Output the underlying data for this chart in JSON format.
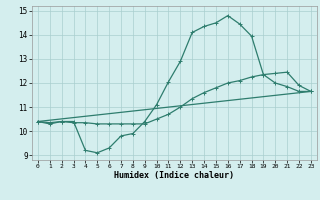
{
  "xlabel": "Humidex (Indice chaleur)",
  "bg_color": "#d4eeee",
  "line_color": "#2e7d6e",
  "grid_color": "#aacfcf",
  "xlim": [
    -0.5,
    23.5
  ],
  "ylim": [
    8.8,
    15.2
  ],
  "xticks": [
    0,
    1,
    2,
    3,
    4,
    5,
    6,
    7,
    8,
    9,
    10,
    11,
    12,
    13,
    14,
    15,
    16,
    17,
    18,
    19,
    20,
    21,
    22,
    23
  ],
  "yticks": [
    9,
    10,
    11,
    12,
    13,
    14,
    15
  ],
  "line1_x": [
    0,
    1,
    2,
    3,
    4,
    5,
    6,
    7,
    8,
    9,
    10,
    11,
    12,
    13,
    14,
    15,
    16,
    17,
    18,
    19,
    20,
    21,
    22,
    23
  ],
  "line1_y": [
    10.4,
    10.3,
    10.4,
    10.4,
    9.2,
    9.1,
    9.3,
    9.8,
    9.9,
    10.4,
    11.1,
    12.05,
    12.9,
    14.1,
    14.35,
    14.5,
    14.8,
    14.45,
    13.95,
    12.35,
    12.0,
    11.85,
    11.65,
    11.65
  ],
  "line2_x": [
    0,
    1,
    2,
    3,
    4,
    5,
    6,
    7,
    8,
    9,
    10,
    11,
    12,
    13,
    14,
    15,
    16,
    17,
    18,
    19,
    20,
    21,
    22,
    23
  ],
  "line2_y": [
    10.4,
    10.35,
    10.4,
    10.35,
    10.35,
    10.3,
    10.3,
    10.3,
    10.3,
    10.3,
    10.5,
    10.7,
    11.0,
    11.35,
    11.6,
    11.8,
    12.0,
    12.1,
    12.25,
    12.35,
    12.4,
    12.45,
    11.9,
    11.65
  ],
  "line3_x": [
    0,
    23
  ],
  "line3_y": [
    10.4,
    11.65
  ],
  "marker_size": 3.5,
  "linewidth": 0.9
}
